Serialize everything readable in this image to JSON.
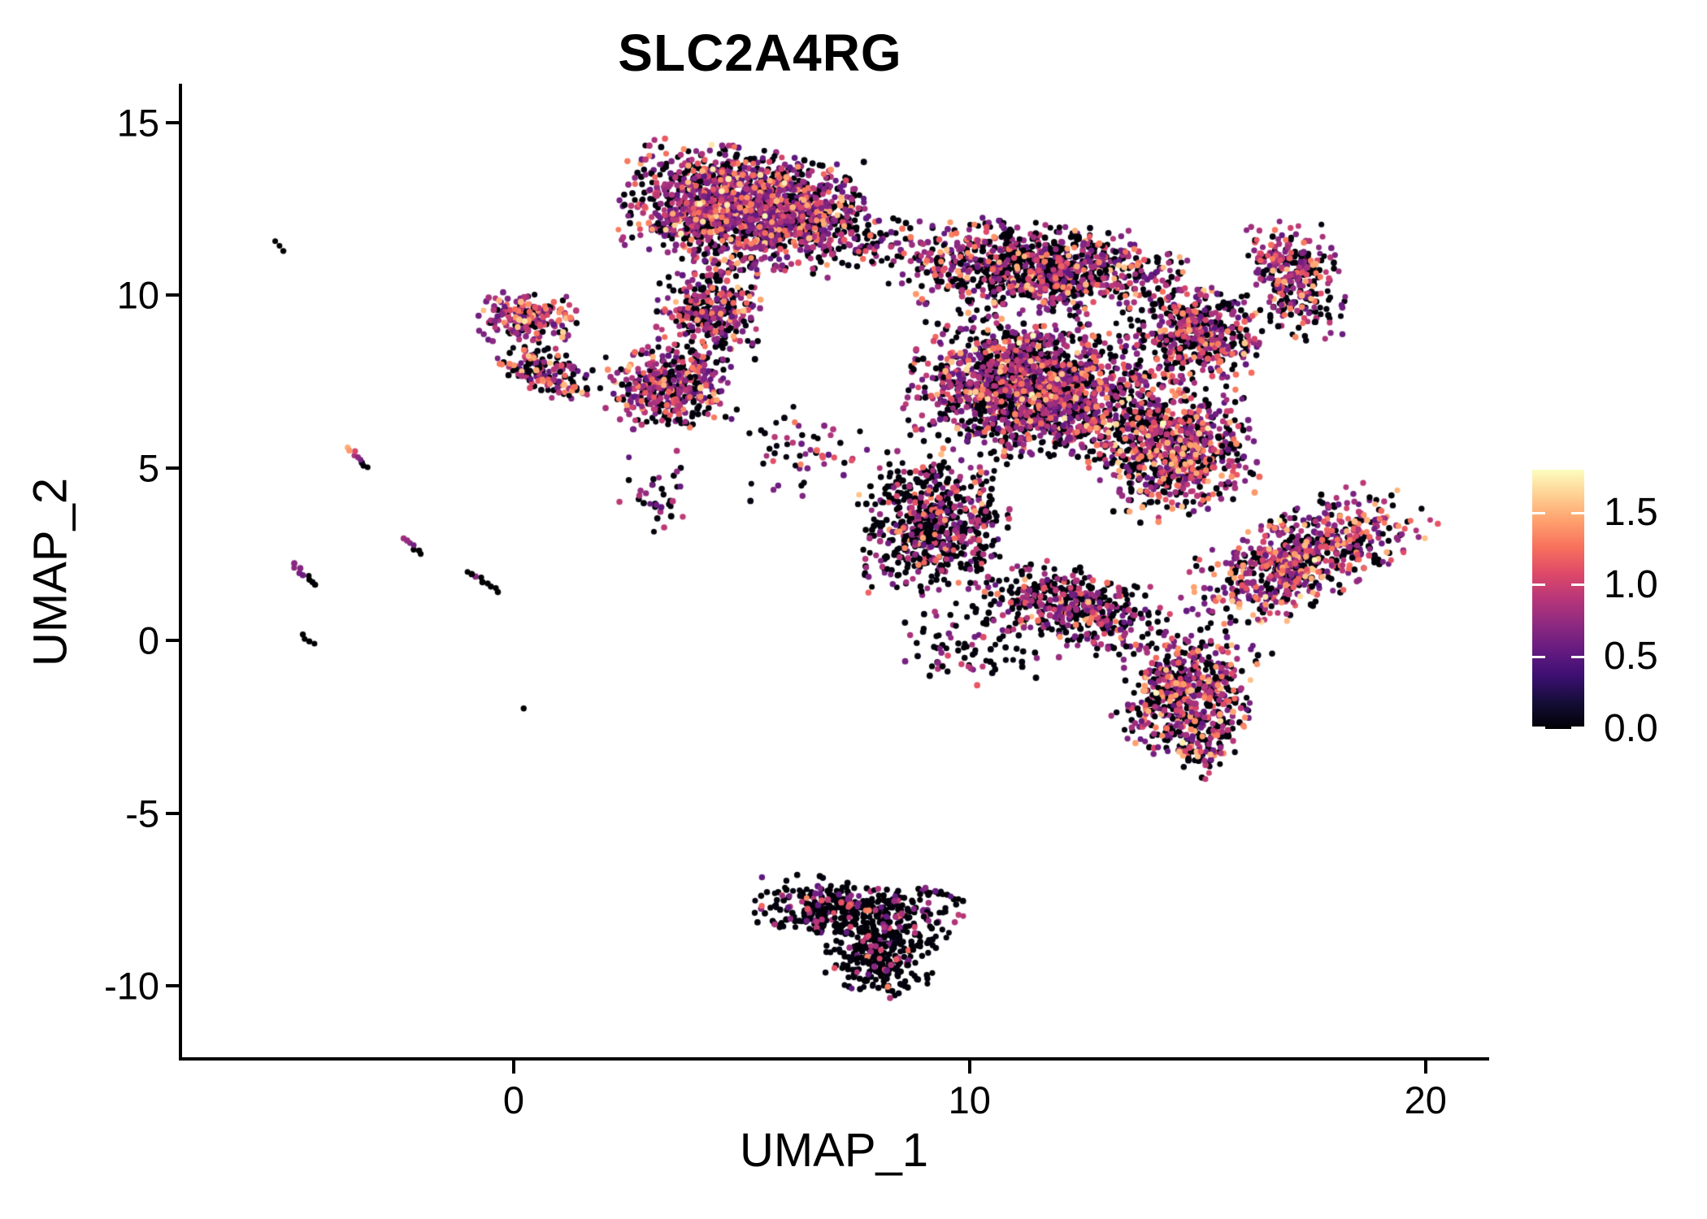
{
  "title": "SLC2A4RG",
  "axes": {
    "x": {
      "title": "UMAP_1",
      "tick_values": [
        0,
        10,
        20
      ],
      "tick_labels": [
        "0",
        "10",
        "20"
      ],
      "range": [
        -7.29,
        21.36
      ]
    },
    "y": {
      "title": "UMAP_2",
      "tick_values": [
        15,
        10,
        5,
        0,
        -5,
        -10
      ],
      "tick_labels": [
        "15",
        "10",
        "5",
        "0",
        "-5",
        "-10"
      ],
      "range": [
        -12.12,
        16.08
      ]
    }
  },
  "colorbar": {
    "tick_values": [
      1.5,
      1.0,
      0.5,
      0.0
    ],
    "tick_labels": [
      "1.5",
      "1.0",
      "0.5",
      "0.0"
    ],
    "range": [
      0,
      1.8
    ],
    "palette_name": "magma",
    "palette": [
      "#000004",
      "#140E36",
      "#3B0F70",
      "#641A80",
      "#8C2981",
      "#B63679",
      "#DE4968",
      "#F7705C",
      "#FE9F6D",
      "#FECF92",
      "#FCFDBF"
    ]
  },
  "chart_data": {
    "type": "scatter",
    "title": "SLC2A4RG",
    "xlabel": "UMAP_1",
    "ylabel": "UMAP_2",
    "xlim": [
      -7.29,
      21.36
    ],
    "ylim": [
      -12.12,
      16.08
    ],
    "grid": false,
    "legend_position": "right",
    "color_scale": {
      "min": 0,
      "max": 1.8,
      "palette": "magma"
    },
    "point_radius_px": 3.6,
    "expression_levels": {
      "zero": [
        0.0,
        0.05
      ],
      "low": [
        0.5,
        0.95
      ],
      "mid": [
        1.0,
        1.35
      ],
      "high": [
        1.35,
        1.6
      ],
      "top": [
        1.6,
        1.8
      ]
    },
    "clusters": [
      {
        "name": "top-core",
        "cx": 4.9,
        "cy": 12.55,
        "sx": 1.15,
        "sy": 0.78,
        "angle": -8,
        "n": 1500,
        "mix": {
          "zero": 0.3,
          "low": 0.5,
          "mid": 0.14,
          "high": 0.05,
          "top": 0.01
        }
      },
      {
        "name": "top-east",
        "cx": 6.6,
        "cy": 12.3,
        "sx": 0.55,
        "sy": 0.55,
        "angle": 0,
        "n": 260,
        "mix": {
          "zero": 0.45,
          "low": 0.4,
          "mid": 0.1,
          "high": 0.05,
          "top": 0.0
        }
      },
      {
        "name": "top-neck",
        "cx": 4.3,
        "cy": 9.6,
        "sx": 0.55,
        "sy": 0.75,
        "angle": -10,
        "n": 330,
        "mix": {
          "zero": 0.42,
          "low": 0.41,
          "mid": 0.12,
          "high": 0.05,
          "top": 0.0
        }
      },
      {
        "name": "sub-left",
        "cx": 3.4,
        "cy": 7.35,
        "sx": 0.62,
        "sy": 0.55,
        "angle": 0,
        "n": 380,
        "mix": {
          "zero": 0.38,
          "low": 0.45,
          "mid": 0.13,
          "high": 0.04,
          "top": 0.0
        }
      },
      {
        "name": "left-upper",
        "cx": 0.35,
        "cy": 9.35,
        "sx": 0.5,
        "sy": 0.33,
        "angle": 0,
        "n": 200,
        "mix": {
          "zero": 0.35,
          "low": 0.4,
          "mid": 0.15,
          "high": 0.09,
          "top": 0.01
        }
      },
      {
        "name": "left-lower",
        "cx": 0.75,
        "cy": 7.75,
        "sx": 0.55,
        "sy": 0.3,
        "angle": -35,
        "n": 160,
        "mix": {
          "zero": 0.45,
          "low": 0.35,
          "mid": 0.12,
          "high": 0.08,
          "top": 0.0
        }
      },
      {
        "name": "bridge",
        "cx": 7.7,
        "cy": 11.6,
        "sx": 0.55,
        "sy": 0.45,
        "angle": 0,
        "n": 70,
        "mix": {
          "zero": 0.5,
          "low": 0.4,
          "mid": 0.1,
          "high": 0.0,
          "top": 0.0
        }
      },
      {
        "name": "big-top-band",
        "cx": 11.5,
        "cy": 10.75,
        "sx": 1.5,
        "sy": 0.6,
        "angle": -7,
        "n": 1000,
        "mix": {
          "zero": 0.48,
          "low": 0.37,
          "mid": 0.11,
          "high": 0.04,
          "top": 0.0
        }
      },
      {
        "name": "big-core",
        "cx": 11.4,
        "cy": 7.3,
        "sx": 1.25,
        "sy": 0.95,
        "angle": -10,
        "n": 1700,
        "mix": {
          "zero": 0.42,
          "low": 0.4,
          "mid": 0.13,
          "high": 0.04,
          "top": 0.01
        }
      },
      {
        "name": "big-core-right",
        "cx": 14.5,
        "cy": 5.6,
        "sx": 0.8,
        "sy": 0.95,
        "angle": 10,
        "n": 800,
        "mix": {
          "zero": 0.4,
          "low": 0.38,
          "mid": 0.15,
          "high": 0.06,
          "top": 0.01
        }
      },
      {
        "name": "big-upper-right",
        "cx": 15.0,
        "cy": 8.9,
        "sx": 0.65,
        "sy": 0.6,
        "angle": 0,
        "n": 430,
        "mix": {
          "zero": 0.42,
          "low": 0.4,
          "mid": 0.13,
          "high": 0.05,
          "top": 0.0
        }
      },
      {
        "name": "peninsula",
        "cx": 17.2,
        "cy": 10.4,
        "sx": 0.5,
        "sy": 0.8,
        "angle": 12,
        "n": 290,
        "mix": {
          "zero": 0.4,
          "low": 0.4,
          "mid": 0.14,
          "high": 0.06,
          "top": 0.0
        }
      },
      {
        "name": "big-left-lobe",
        "cx": 9.2,
        "cy": 3.4,
        "sx": 0.75,
        "sy": 0.95,
        "angle": 0,
        "n": 620,
        "mix": {
          "zero": 0.62,
          "low": 0.28,
          "mid": 0.08,
          "high": 0.02,
          "top": 0.0
        }
      },
      {
        "name": "big-bottom-tail",
        "cx": 12.3,
        "cy": 0.95,
        "sx": 0.95,
        "sy": 0.55,
        "angle": -18,
        "n": 450,
        "mix": {
          "zero": 0.55,
          "low": 0.33,
          "mid": 0.09,
          "high": 0.03,
          "top": 0.0
        }
      },
      {
        "name": "lobe-br",
        "cx": 14.8,
        "cy": -1.55,
        "sx": 0.7,
        "sy": 0.85,
        "angle": -15,
        "n": 540,
        "mix": {
          "zero": 0.4,
          "low": 0.34,
          "mid": 0.15,
          "high": 0.1,
          "top": 0.01
        }
      },
      {
        "name": "lobe-br-tip",
        "cx": 15.1,
        "cy": -3.2,
        "sx": 0.28,
        "sy": 0.38,
        "angle": -20,
        "n": 60,
        "mix": {
          "zero": 0.45,
          "low": 0.35,
          "mid": 0.12,
          "high": 0.08,
          "top": 0.0
        }
      },
      {
        "name": "wing",
        "cx": 17.3,
        "cy": 2.4,
        "sx": 1.35,
        "sy": 0.6,
        "angle": 35,
        "n": 700,
        "mix": {
          "zero": 0.3,
          "low": 0.44,
          "mid": 0.17,
          "high": 0.08,
          "top": 0.01
        }
      },
      {
        "name": "mid-strays",
        "cx": 6.4,
        "cy": 5.4,
        "sx": 0.8,
        "sy": 0.7,
        "angle": 0,
        "n": 55,
        "mix": {
          "zero": 0.55,
          "low": 0.35,
          "mid": 0.1,
          "high": 0.0,
          "top": 0.0
        }
      },
      {
        "name": "below-sub-strays",
        "cx": 3.2,
        "cy": 4.3,
        "sx": 0.4,
        "sy": 0.55,
        "angle": 0,
        "n": 35,
        "mix": {
          "zero": 0.5,
          "low": 0.4,
          "mid": 0.1,
          "high": 0.0,
          "top": 0.0
        }
      },
      {
        "name": "big-under-scatter",
        "cx": 10.1,
        "cy": -0.1,
        "sx": 0.9,
        "sy": 0.55,
        "angle": 0,
        "n": 90,
        "mix": {
          "zero": 0.7,
          "low": 0.25,
          "mid": 0.05,
          "high": 0.0,
          "top": 0.0
        }
      },
      {
        "name": "bottom-main",
        "cx": 7.5,
        "cy": -7.95,
        "sx": 1.05,
        "sy": 0.45,
        "angle": -8,
        "n": 430,
        "mix": {
          "zero": 0.8,
          "low": 0.16,
          "mid": 0.04,
          "high": 0.0,
          "top": 0.0
        }
      },
      {
        "name": "bottom-low",
        "cx": 8.05,
        "cy": -9.2,
        "sx": 0.55,
        "sy": 0.5,
        "angle": -20,
        "n": 240,
        "mix": {
          "zero": 0.85,
          "low": 0.13,
          "mid": 0.02,
          "high": 0.0,
          "top": 0.0
        }
      }
    ],
    "streaks": [
      {
        "name": "streak-far-topleft",
        "x1": -5.25,
        "y1": 11.55,
        "x2": -5.03,
        "y2": 11.3,
        "n": 3,
        "v": [
          0,
          0,
          0
        ]
      },
      {
        "name": "streak-orange",
        "x1": -3.62,
        "y1": 5.6,
        "x2": -3.2,
        "y2": 5.02,
        "n": 9,
        "v": [
          1.5,
          1.42,
          1.05,
          0.85,
          0.72,
          0.6,
          0.05,
          0,
          0
        ]
      },
      {
        "name": "streak-purple-mid",
        "x1": -2.42,
        "y1": 2.95,
        "x2": -2.05,
        "y2": 2.5,
        "n": 7,
        "v": [
          0.8,
          0.75,
          0.68,
          0.6,
          0,
          0,
          0
        ]
      },
      {
        "name": "streak-purple-left",
        "x1": -4.85,
        "y1": 2.2,
        "x2": -4.35,
        "y2": 1.62,
        "n": 9,
        "v": [
          0.7,
          0.72,
          0.68,
          0.62,
          0.58,
          0,
          0,
          0,
          0
        ]
      },
      {
        "name": "streak-black-mid",
        "x1": -1.0,
        "y1": 2.0,
        "x2": -0.33,
        "y2": 1.42,
        "n": 9,
        "v": [
          0,
          0,
          0.7,
          0,
          0,
          0,
          0,
          0,
          0
        ]
      },
      {
        "name": "streak-black-low",
        "x1": -4.65,
        "y1": 0.15,
        "x2": -4.4,
        "y2": -0.12,
        "n": 4,
        "v": [
          0,
          0,
          0,
          0
        ]
      },
      {
        "name": "dot-single",
        "x1": 0.22,
        "y1": -1.97,
        "x2": 0.22,
        "y2": -1.97,
        "n": 1,
        "v": [
          0
        ]
      },
      {
        "name": "bottom-blob-tail",
        "x1": 8.9,
        "y1": -7.15,
        "x2": 9.75,
        "y2": -7.5,
        "n": 11,
        "v": [
          0,
          0.6,
          0,
          0,
          0.55,
          0,
          0,
          0,
          0.5,
          0,
          0
        ]
      }
    ]
  }
}
